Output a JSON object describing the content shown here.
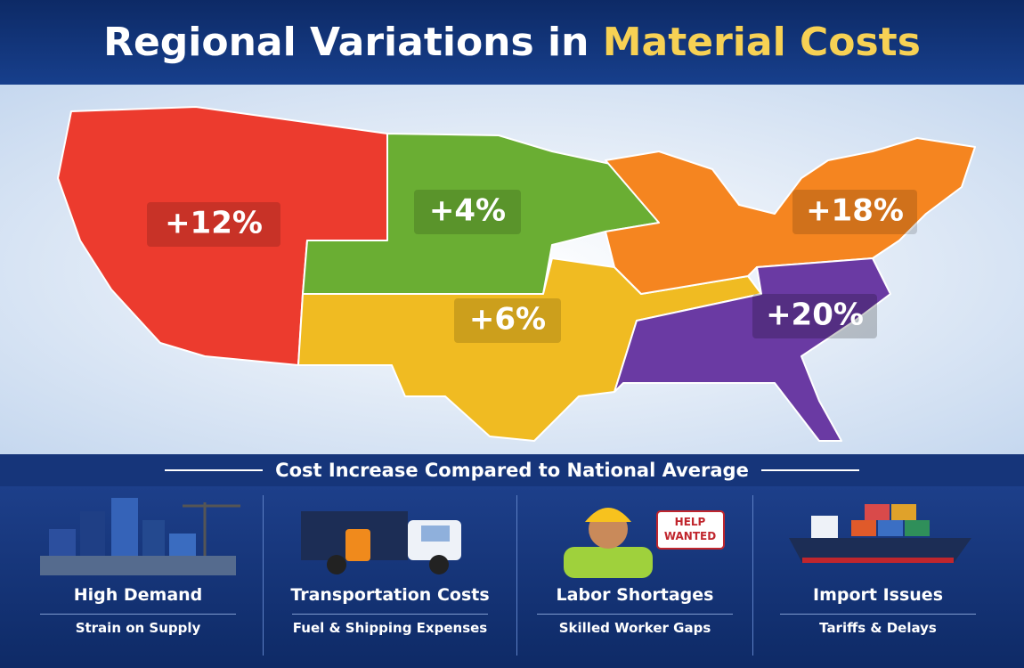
{
  "title": {
    "lead": "Regional Variations in",
    "highlight": "Material Costs"
  },
  "regions": [
    {
      "label": "+12%"
    },
    {
      "label": "+4%"
    },
    {
      "label": "+6%"
    },
    {
      "label": "+18%"
    },
    {
      "label": "+20%"
    }
  ],
  "banner": "Cost Increase Compared to National Average",
  "sign": [
    "HELP",
    "WANTED"
  ],
  "factors": [
    {
      "title": "High Demand",
      "subtitle": "Strain on Supply"
    },
    {
      "title": "Transportation Costs",
      "subtitle": "Fuel & Shipping Expenses"
    },
    {
      "title": "Labor Shortages",
      "subtitle": "Skilled Worker Gaps"
    },
    {
      "title": "Import Issues",
      "subtitle": "Tariffs & Delays"
    }
  ]
}
